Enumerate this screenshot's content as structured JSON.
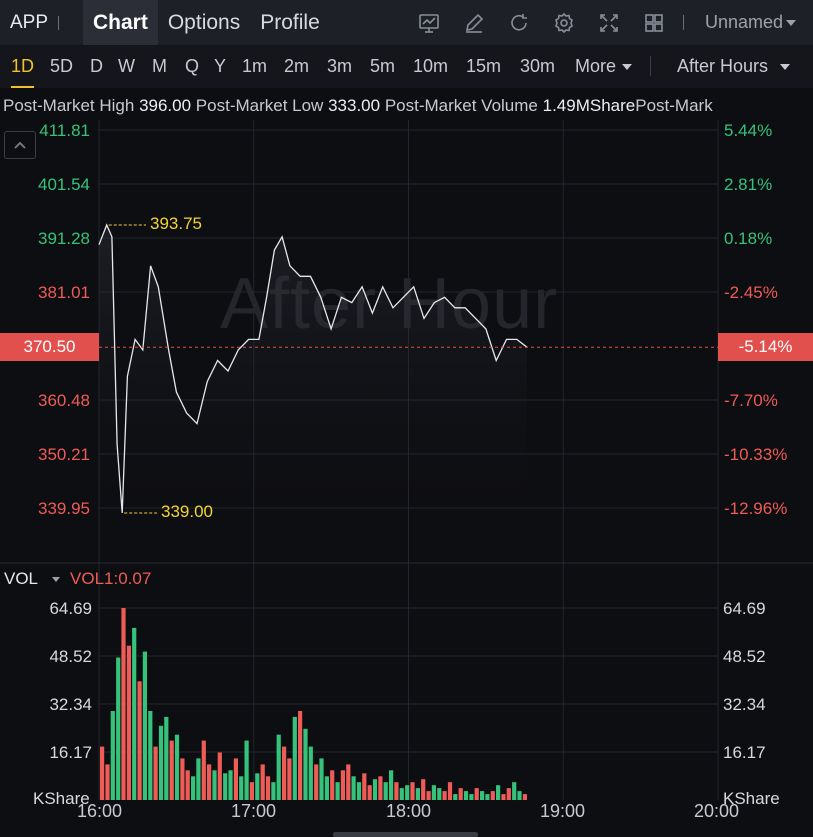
{
  "header": {
    "symbol": "APP",
    "tabs": [
      "Chart",
      "Options",
      "Profile"
    ],
    "active_tab": "Chart",
    "icons": [
      "indicator-icon",
      "draw-icon",
      "refresh-icon",
      "settings-icon",
      "fullscreen-icon",
      "layout-grid-icon"
    ],
    "layout_label": "Unnamed"
  },
  "periods": {
    "items": [
      "1D",
      "5D",
      "D",
      "W",
      "M",
      "Q",
      "Y",
      "1m",
      "2m",
      "3m",
      "5m",
      "10m",
      "15m",
      "30m",
      "More"
    ],
    "active": "1D",
    "session_label": "After Hours"
  },
  "info_strip": {
    "high_label": "Post-Market High",
    "high_value": "396.00",
    "low_label": "Post-Market Low",
    "low_value": "333.00",
    "volume_label": "Post-Market Volume",
    "volume_value": "1.49MShare",
    "overflow_label": "Post-Mark"
  },
  "price_chart": {
    "watermark": "After Hour",
    "left_ticks": [
      "411.81",
      "401.54",
      "391.28",
      "381.01",
      "360.48",
      "350.21",
      "339.95"
    ],
    "right_ticks": [
      "5.44%",
      "2.81%",
      "0.18%",
      "-2.45%",
      "-7.70%",
      "-10.33%",
      "-12.96%"
    ],
    "current_price": "370.50",
    "current_pct": "-5.14%",
    "high_marker": "393.75",
    "low_marker": "339.00",
    "colors": {
      "up": "#35c27a",
      "down": "#ef5b56",
      "line": "#e6e7ec",
      "marker": "#f3d433"
    }
  },
  "volume_chart": {
    "indicator": "VOL",
    "value_label": "VOL1:0.07",
    "ticks": [
      "64.69",
      "48.52",
      "32.34",
      "16.17"
    ],
    "unit": "KShare"
  },
  "time_axis": [
    "16:00",
    "17:00",
    "18:00",
    "19:00",
    "20:00"
  ],
  "chart_data": {
    "type": "line",
    "price_series": {
      "time": [
        "16:00",
        "16:03",
        "16:05",
        "16:07",
        "16:09",
        "16:11",
        "16:14",
        "16:17",
        "16:20",
        "16:23",
        "16:27",
        "16:30",
        "16:34",
        "16:38",
        "16:42",
        "16:46",
        "16:50",
        "16:54",
        "16:58",
        "17:02",
        "17:05",
        "17:08",
        "17:11",
        "17:14",
        "17:18",
        "17:22",
        "17:26",
        "17:30",
        "17:34",
        "17:38",
        "17:42",
        "17:46",
        "17:50",
        "17:54",
        "17:58",
        "18:02",
        "18:06",
        "18:10",
        "18:14",
        "18:18",
        "18:22",
        "18:26",
        "18:30",
        "18:34",
        "18:38",
        "18:42",
        "18:46"
      ],
      "price": [
        390.0,
        393.75,
        391.5,
        352.0,
        339.0,
        365.0,
        372.0,
        370.0,
        386.0,
        382.0,
        370.0,
        362.0,
        358.0,
        356.0,
        364.0,
        368.0,
        366.0,
        370.0,
        372.0,
        372.0,
        380.0,
        389.0,
        391.5,
        386.0,
        384.0,
        384.0,
        380.0,
        374.0,
        380.0,
        379.0,
        382.0,
        377.0,
        382.0,
        378.0,
        380.0,
        382.0,
        376.0,
        379.0,
        380.0,
        378.0,
        378.0,
        376.0,
        374.0,
        368.0,
        372.0,
        372.0,
        370.5
      ]
    },
    "volume_series": {
      "unit": "KShare",
      "values": [
        18,
        12,
        30,
        48,
        64.69,
        52,
        58,
        40,
        50,
        30,
        18,
        25,
        28,
        20,
        22,
        14,
        10,
        8,
        14,
        20,
        12,
        10,
        16,
        9,
        10,
        14,
        8,
        20,
        6,
        9,
        12,
        8,
        6,
        22,
        18,
        14,
        28,
        30,
        24,
        18,
        12,
        14,
        8,
        10,
        6,
        10,
        12,
        8,
        6,
        9,
        5,
        7,
        8,
        6,
        10,
        6,
        4,
        5,
        6,
        4,
        7,
        3,
        5,
        4,
        3,
        6,
        2,
        4,
        3,
        2,
        4,
        3,
        2,
        3,
        5,
        2,
        4,
        6,
        3,
        2
      ]
    },
    "y_range": [
      333,
      415
    ],
    "vol_range": [
      0,
      70
    ],
    "x_range": [
      "16:00",
      "20:00"
    ]
  }
}
